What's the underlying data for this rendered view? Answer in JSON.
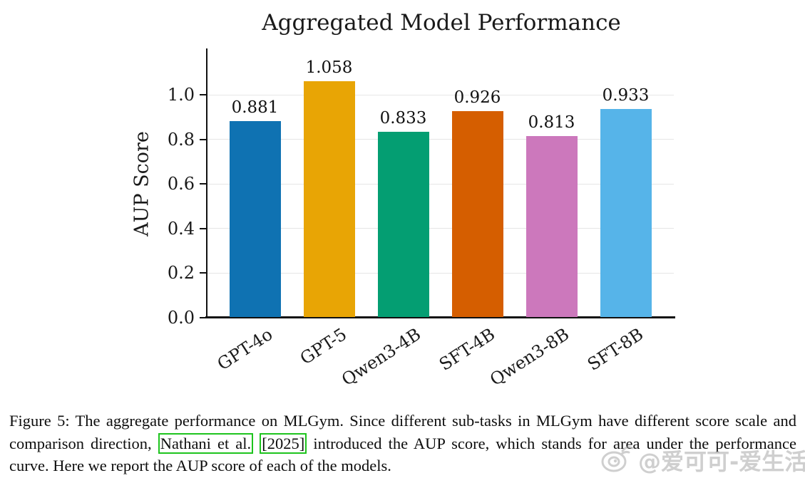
{
  "chart_data": {
    "type": "bar",
    "title": "Aggregated Model Performance",
    "categories": [
      "GPT-4o",
      "GPT-5",
      "Qwen3-4B",
      "SFT-4B",
      "Qwen3-8B",
      "SFT-8B"
    ],
    "values": [
      0.881,
      1.058,
      0.833,
      0.926,
      0.813,
      0.933
    ],
    "value_labels": [
      "0.881",
      "1.058",
      "0.833",
      "0.926",
      "0.813",
      "0.933"
    ],
    "bar_colors": [
      "#0f72b2",
      "#e8a505",
      "#049e72",
      "#d55e00",
      "#cc78bc",
      "#56b4e9"
    ],
    "xlabel": "",
    "ylabel": "AUP Score",
    "ylim": [
      0.0,
      1.2
    ],
    "yticks": [
      0.0,
      0.2,
      0.4,
      0.6,
      0.8,
      1.0
    ],
    "ytick_labels": [
      "0.0",
      "0.2",
      "0.4",
      "0.6",
      "0.8",
      "1.0"
    ],
    "grid": "horizontal-light",
    "legend": "none",
    "xtick_rotation_deg": 33
  },
  "caption": {
    "part1": "Figure 5: The aggregate performance on MLGym. Since different sub-tasks in MLGym have different score scale and comparison direction, ",
    "citation_author": "Nathani et al.",
    "part2": " ",
    "citation_year": "[2025]",
    "part3": " introduced the AUP score, which stands for area under the performance curve. Here we report the AUP score of each of the models.",
    "link_box_color": "#1ec41e"
  },
  "watermark": {
    "icon": "weibo-mascot-icon",
    "text": "@爱可可-爱生活",
    "color": "#a8a8a8"
  }
}
